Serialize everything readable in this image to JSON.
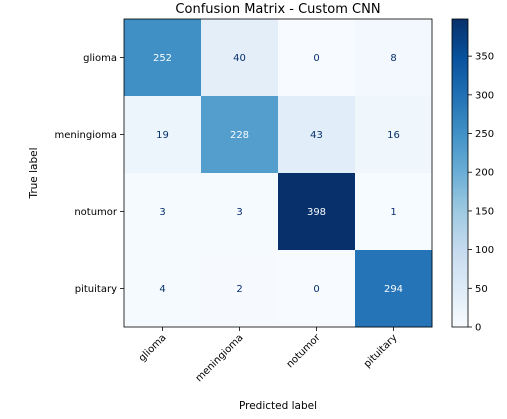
{
  "chart_data": {
    "type": "heatmap",
    "title": "Confusion Matrix - Custom CNN",
    "xlabel": "Predicted label",
    "ylabel": "True label",
    "x_categories": [
      "glioma",
      "meningioma",
      "notumor",
      "pituitary"
    ],
    "y_categories": [
      "glioma",
      "meningioma",
      "notumor",
      "pituitary"
    ],
    "values": [
      [
        252,
        40,
        0,
        8
      ],
      [
        19,
        228,
        43,
        16
      ],
      [
        3,
        3,
        398,
        1
      ],
      [
        4,
        2,
        0,
        294
      ]
    ],
    "colormap": "Blues",
    "value_range": [
      0,
      398
    ],
    "colorbar_ticks": [
      0,
      50,
      100,
      150,
      200,
      250,
      300,
      350
    ],
    "colorbar_tick_labels": [
      "0",
      "50",
      "100",
      "150",
      "200",
      "250",
      "300",
      "350"
    ],
    "dark_text_color": "#08306b",
    "light_text_color": "#f7fbff",
    "grid": false,
    "colorbar": "right"
  }
}
